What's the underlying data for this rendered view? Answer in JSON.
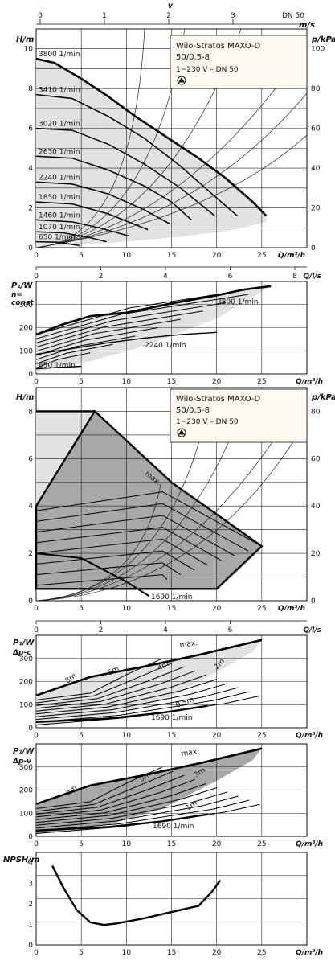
{
  "chart_data": [
    {
      "type": "line",
      "top_axis_label": "v",
      "top_axis_unit": "m/s",
      "top_ticks": [
        "0",
        "1",
        "2",
        "3"
      ],
      "top_note": "DN 50",
      "ylabel": "H/m",
      "yticks": [
        "0",
        "2",
        "4",
        "6",
        "8",
        "10"
      ],
      "ylim": [
        0,
        11
      ],
      "y2label": "p/kPa",
      "y2ticks": [
        "0",
        "20",
        "40",
        "60",
        "80",
        "100"
      ],
      "xlabel": "Q/m³/h",
      "xticks": [
        "0",
        "5",
        "10",
        "15",
        "20",
        "25"
      ],
      "xlim": [
        0,
        30
      ],
      "x2label": "Q/l/s",
      "x2ticks": [
        "0",
        "2",
        "4",
        "6",
        "8"
      ],
      "box_title": "Wilo-Stratos MAXO-D",
      "box_model": "50/0,5-8",
      "box_spec": "1~230 V – DN 50",
      "grid": true,
      "series": [
        {
          "name": "3800 1/min",
          "x": [
            0,
            2,
            5,
            8,
            11,
            15,
            18,
            21,
            24,
            25.5
          ],
          "y": [
            9.5,
            9.3,
            8.5,
            7.6,
            6.6,
            5.4,
            4.5,
            3.5,
            2.3,
            1.6
          ]
        },
        {
          "name": "3410 1/min",
          "x": [
            0,
            4,
            8,
            12,
            16,
            20,
            22.3
          ],
          "y": [
            7.7,
            7.5,
            6.6,
            5.5,
            4.1,
            2.5,
            1.6
          ]
        },
        {
          "name": "3020 1/min",
          "x": [
            0,
            4,
            8,
            12,
            16,
            19.8
          ],
          "y": [
            6.0,
            5.9,
            5.2,
            4.2,
            3.0,
            1.6
          ]
        },
        {
          "name": "2630 1/min",
          "x": [
            0,
            4,
            8,
            12,
            15,
            17.2
          ],
          "y": [
            4.6,
            4.5,
            3.9,
            3.1,
            2.3,
            1.4
          ]
        },
        {
          "name": "2240 1/min",
          "x": [
            0,
            4,
            8,
            12,
            14.8
          ],
          "y": [
            3.3,
            3.2,
            2.7,
            1.9,
            1.2
          ]
        },
        {
          "name": "1850 1/min",
          "x": [
            0,
            4,
            8,
            12.4
          ],
          "y": [
            2.3,
            2.2,
            1.7,
            0.9
          ]
        },
        {
          "name": "1460 1/min",
          "x": [
            0,
            4,
            7,
            10.2
          ],
          "y": [
            1.4,
            1.3,
            1.0,
            0.6
          ]
        },
        {
          "name": "1070 1/min",
          "x": [
            0,
            3,
            6,
            7.8
          ],
          "y": [
            0.8,
            0.75,
            0.5,
            0.3
          ]
        },
        {
          "name": "650 1/min",
          "x": [
            0,
            2.5,
            4.8
          ],
          "y": [
            0.3,
            0.27,
            0.1
          ]
        }
      ]
    },
    {
      "type": "line",
      "ylabel": "P₁/W",
      "mode_label": "n=",
      "mode_label2": "const",
      "yticks": [
        "0",
        "100",
        "200",
        "300"
      ],
      "ylim": [
        0,
        400
      ],
      "xlabel": "Q/m³/h",
      "xticks": [
        "0",
        "5",
        "10",
        "15",
        "20",
        "25"
      ],
      "xlim": [
        0,
        30
      ],
      "x2label": "Q/l/s",
      "x2ticks": [
        "0",
        "2",
        "4",
        "6",
        "8"
      ],
      "grid": true,
      "series": [
        {
          "name": "3800 1/min",
          "x": [
            0,
            3,
            6,
            10,
            15,
            20,
            23,
            26
          ],
          "y": [
            170,
            215,
            250,
            265,
            305,
            340,
            365,
            380
          ]
        },
        {
          "name": "2240 1/min",
          "x": [
            0,
            4,
            8,
            12,
            16,
            20
          ],
          "y": [
            85,
            110,
            135,
            155,
            170,
            180
          ]
        },
        {
          "name": "650 1/min",
          "x": [
            0,
            2,
            4,
            5
          ],
          "y": [
            22,
            27,
            31,
            33
          ]
        }
      ]
    },
    {
      "type": "area",
      "ylabel": "H/m",
      "yticks": [
        "0",
        "2",
        "4",
        "6",
        "8"
      ],
      "ylim": [
        0,
        9
      ],
      "y2label": "p/kPa",
      "y2ticks": [
        "0",
        "20",
        "40",
        "60",
        "80"
      ],
      "xlabel": "Q/m³/h",
      "xticks": [
        "0",
        "5",
        "10",
        "15",
        "20",
        "25"
      ],
      "xlim": [
        0,
        30
      ],
      "x2label": "Q/l/s",
      "x2ticks": [
        "0",
        "2",
        "4",
        "6"
      ],
      "box_title": "Wilo-Stratos MAXO-D",
      "box_model": "50/0,5-8",
      "box_spec": "1~230 V – DN 50",
      "envelope_label": "max.",
      "min_label": "1690 1/min",
      "grid": true
    },
    {
      "type": "line",
      "ylabel": "P₁/W",
      "mode_label": "Δp-c",
      "yticks": [
        "0",
        "100",
        "200",
        "300"
      ],
      "ylim": [
        0,
        400
      ],
      "xlabel": "Q/m³/h",
      "xticks": [
        "0",
        "5",
        "10",
        "15",
        "20",
        "25"
      ],
      "xlim": [
        0,
        30
      ],
      "x2label": "Q/l/s",
      "x2ticks": [
        "0",
        "2",
        "4",
        "6"
      ],
      "curve_labels": [
        "8m",
        "6m",
        "4m",
        "2m",
        "0.5m",
        "max.",
        "1690 1/min"
      ],
      "grid": true
    },
    {
      "type": "line",
      "ylabel": "P₁/W",
      "mode_label": "Δp-v",
      "yticks": [
        "0",
        "100",
        "200",
        "300"
      ],
      "ylim": [
        0,
        400
      ],
      "xlabel": "Q/m³/h",
      "xticks": [
        "0",
        "5",
        "10",
        "15",
        "20",
        "25"
      ],
      "xlim": [
        0,
        30
      ],
      "curve_labels": [
        "8m",
        "5m",
        "3m",
        "1m",
        "max.",
        "1690 1/min"
      ],
      "grid": true
    },
    {
      "type": "line",
      "ylabel": "NPSH/m",
      "yticks": [
        "0",
        "1",
        "2",
        "3",
        "4"
      ],
      "ylim": [
        0,
        4.5
      ],
      "xlabel": "Q/m³/h",
      "xticks": [
        "0",
        "5",
        "10",
        "15",
        "20",
        "25"
      ],
      "xlim": [
        0,
        30
      ],
      "grid": true,
      "series": [
        {
          "x": [
            1.8,
            3,
            4.5,
            6,
            7.5,
            9,
            12,
            15,
            18,
            19.5,
            20.4
          ],
          "y": [
            3.85,
            2.8,
            1.7,
            1.1,
            0.97,
            1.05,
            1.3,
            1.6,
            1.9,
            2.6,
            3.15
          ]
        }
      ]
    }
  ]
}
